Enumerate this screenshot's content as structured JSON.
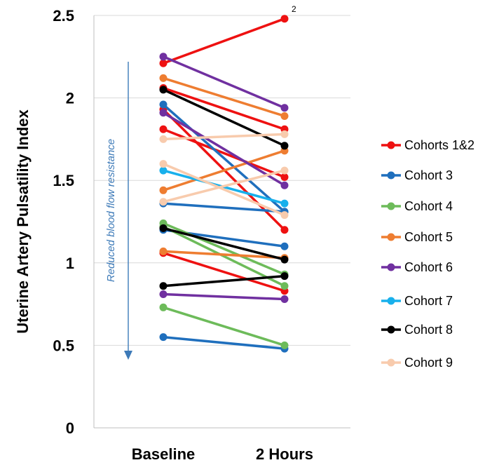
{
  "chart_data": {
    "type": "line",
    "title": "",
    "xlabel": "",
    "ylabel": "Uterine Artery Pulsatility Index",
    "categories": [
      "Baseline",
      "2 Hours"
    ],
    "ylim": [
      0,
      2.5
    ],
    "yticks": [
      "0",
      "0.5",
      "1",
      "1.5",
      "2",
      "2.5"
    ],
    "grid": true,
    "legend_position": "right",
    "series": [
      {
        "name": "Cohorts 1&2",
        "color": "#ee1111",
        "lines": [
          [
            2.21,
            2.48
          ],
          [
            2.06,
            1.81
          ],
          [
            1.93,
            1.2
          ],
          [
            1.81,
            1.52
          ],
          [
            1.06,
            0.83
          ]
        ]
      },
      {
        "name": "Cohort 3",
        "color": "#1f6fbd",
        "lines": [
          [
            1.96,
            1.31
          ],
          [
            1.36,
            1.31
          ],
          [
            1.2,
            1.1
          ],
          [
            0.55,
            0.48
          ]
        ]
      },
      {
        "name": "Cohort 4",
        "color": "#6dbb5a",
        "lines": [
          [
            1.24,
            0.93
          ],
          [
            1.22,
            0.86
          ],
          [
            0.73,
            0.5
          ]
        ]
      },
      {
        "name": "Cohort 5",
        "color": "#ee7d31",
        "lines": [
          [
            2.12,
            1.89
          ],
          [
            1.44,
            1.68
          ],
          [
            1.07,
            1.03
          ]
        ]
      },
      {
        "name": "Cohort 6",
        "color": "#7030a0",
        "lines": [
          [
            2.25,
            1.94
          ],
          [
            1.91,
            1.47
          ],
          [
            0.81,
            0.78
          ]
        ]
      },
      {
        "name": "Cohort 7",
        "color": "#18b0ec",
        "lines": [
          [
            1.56,
            1.36
          ]
        ]
      },
      {
        "name": "Cohort 8",
        "color": "#000000",
        "lines": [
          [
            2.05,
            1.71
          ],
          [
            1.21,
            1.02
          ],
          [
            0.86,
            0.92
          ]
        ]
      },
      {
        "name": "Cohort 9",
        "color": "#f8cbad",
        "lines": [
          [
            1.75,
            1.78
          ],
          [
            1.6,
            1.29
          ],
          [
            1.37,
            1.56
          ]
        ]
      }
    ],
    "annotations": {
      "arrow_text": "Reduced blood flow resistance",
      "footnote": "2"
    }
  }
}
